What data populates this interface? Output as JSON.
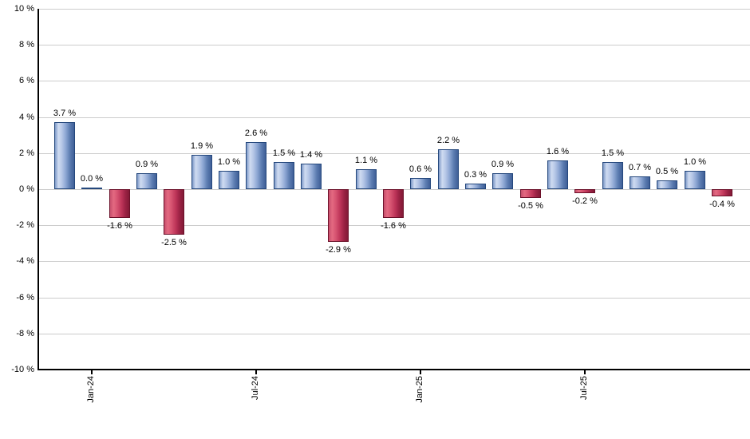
{
  "chart_data": {
    "type": "bar",
    "unit": "%",
    "ylim": [
      -10,
      10
    ],
    "y_tick_step": 2,
    "grid": true,
    "legend_position": "none",
    "y_ticks": [
      {
        "value": 10,
        "label": "10 %"
      },
      {
        "value": 8,
        "label": "8 %"
      },
      {
        "value": 6,
        "label": "6 %"
      },
      {
        "value": 4,
        "label": "4 %"
      },
      {
        "value": 2,
        "label": "2 %"
      },
      {
        "value": 0,
        "label": "0 %"
      },
      {
        "value": -2,
        "label": "-2 %"
      },
      {
        "value": -4,
        "label": "-4 %"
      },
      {
        "value": -6,
        "label": "-6 %"
      },
      {
        "value": -8,
        "label": "-8 %"
      },
      {
        "value": -10,
        "label": "-10 %"
      }
    ],
    "values": [
      3.7,
      0.0,
      -1.6,
      0.9,
      -2.5,
      1.9,
      1.0,
      2.6,
      1.5,
      1.4,
      -2.9,
      1.1,
      -1.6,
      0.6,
      2.2,
      0.3,
      0.9,
      -0.5,
      1.6,
      -0.2,
      1.5,
      0.7,
      0.5,
      1.0,
      -0.4
    ],
    "value_labels": [
      "3.7 %",
      "0.0 %",
      "-1.6 %",
      "0.9 %",
      "-2.5 %",
      "1.9 %",
      "1.0 %",
      "2.6 %",
      "1.5 %",
      "1.4 %",
      "-2.9 %",
      "1.1 %",
      "-1.6 %",
      "0.6 %",
      "2.2 %",
      "0.3 %",
      "0.9 %",
      "-0.5 %",
      "1.6 %",
      "-0.2 %",
      "1.5 %",
      "0.7 %",
      "0.5 %",
      "1.0 %",
      "-0.4 %"
    ],
    "x_ticks": [
      {
        "label": "Jan-24",
        "bar_index": 1
      },
      {
        "label": "Jul-24",
        "bar_index": 7
      },
      {
        "label": "Jan-25",
        "bar_index": 13
      },
      {
        "label": "Jul-25",
        "bar_index": 19
      }
    ],
    "colors": {
      "positive_fill_main": "#5c7cb1",
      "positive_fill_highlight": "#cfdbf1",
      "positive_border": "#24477c",
      "negative_fill_main": "#bd3458",
      "negative_fill_highlight": "#e36981",
      "negative_border": "#6b1029",
      "gridline": "#cccccc",
      "axis": "#000000",
      "text": "#000000",
      "background": "#ffffff"
    }
  }
}
